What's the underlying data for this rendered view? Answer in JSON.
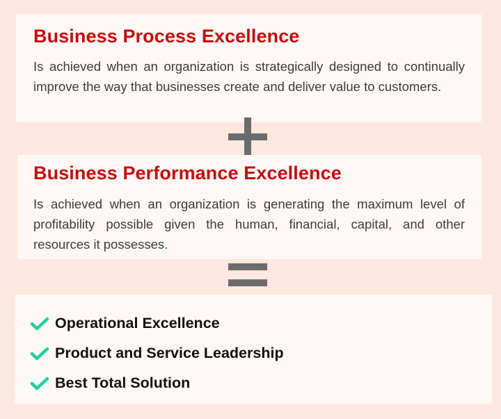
{
  "colors": {
    "background": "#fce8de",
    "card": "#fdf8f5",
    "title": "#c30d0d",
    "operator": "#6b6b6b",
    "check": "#1fcfa0"
  },
  "cards": [
    {
      "title": "Business Process Excellence",
      "description": "Is achieved when an organization is strategically designed to continually improve the way that businesses create and deliver value to customers."
    },
    {
      "title": "Business Performance Excellence",
      "description": "Is achieved when an organization is generating the maximum level of profitability possible given the human, financial, capital, and other resources it possesses."
    }
  ],
  "operators": {
    "first": "plus-icon",
    "second": "equals-icon"
  },
  "outcomes": [
    {
      "icon": "check-icon",
      "label": "Operational Excellence"
    },
    {
      "icon": "check-icon",
      "label": "Product and Service Leadership"
    },
    {
      "icon": "check-icon",
      "label": "Best Total Solution"
    }
  ]
}
